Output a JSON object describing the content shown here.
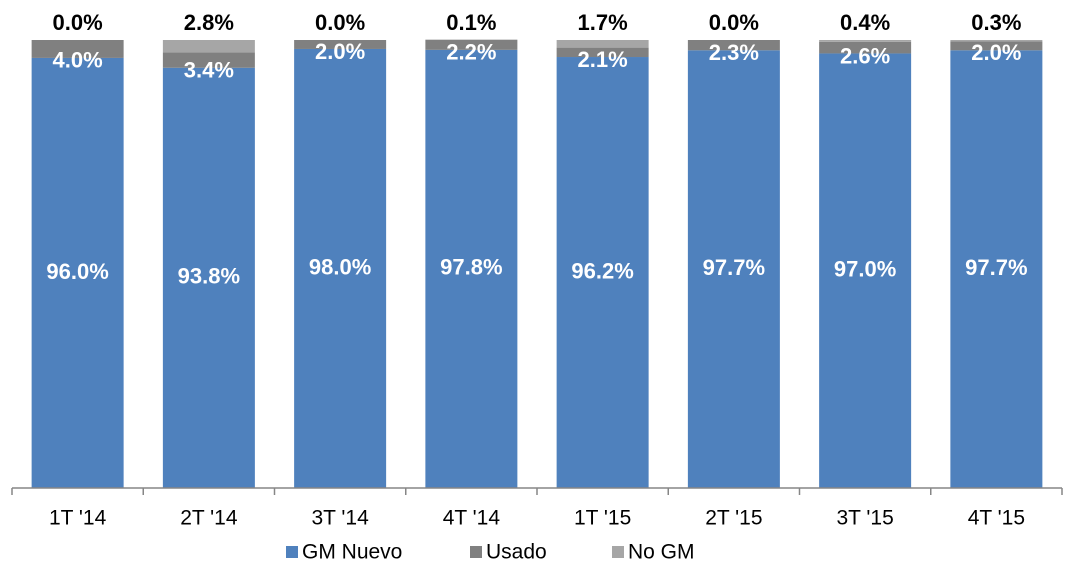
{
  "chart_data": {
    "type": "stacked_bar",
    "categories": [
      "1T '14",
      "2T '14",
      "3T '14",
      "4T '14",
      "1T '15",
      "2T '15",
      "3T '15",
      "4T '15"
    ],
    "series": [
      {
        "name": "GM Nuevo",
        "color": "#4f81bd",
        "values": [
          96.0,
          93.8,
          98.0,
          97.8,
          96.2,
          97.7,
          97.0,
          97.7
        ],
        "value_labels": [
          "96.0%",
          "93.8%",
          "98.0%",
          "97.8%",
          "96.2%",
          "97.7%",
          "97.0%",
          "97.7%"
        ]
      },
      {
        "name": "Usado",
        "color": "#808080",
        "values": [
          4.0,
          3.4,
          2.0,
          2.2,
          2.1,
          2.3,
          2.6,
          2.0
        ],
        "value_labels": [
          "4.0%",
          "3.4%",
          "2.0%",
          "2.2%",
          "2.1%",
          "2.3%",
          "2.6%",
          "2.0%"
        ]
      },
      {
        "name": "No GM",
        "color": "#a6a6a6",
        "values": [
          0.0,
          2.8,
          0.0,
          0.1,
          1.7,
          0.0,
          0.4,
          0.3
        ],
        "value_labels": [
          "0.0%",
          "2.8%",
          "0.0%",
          "0.1%",
          "1.7%",
          "0.0%",
          "0.4%",
          "0.3%"
        ]
      }
    ],
    "ylim": [
      0,
      100
    ]
  }
}
